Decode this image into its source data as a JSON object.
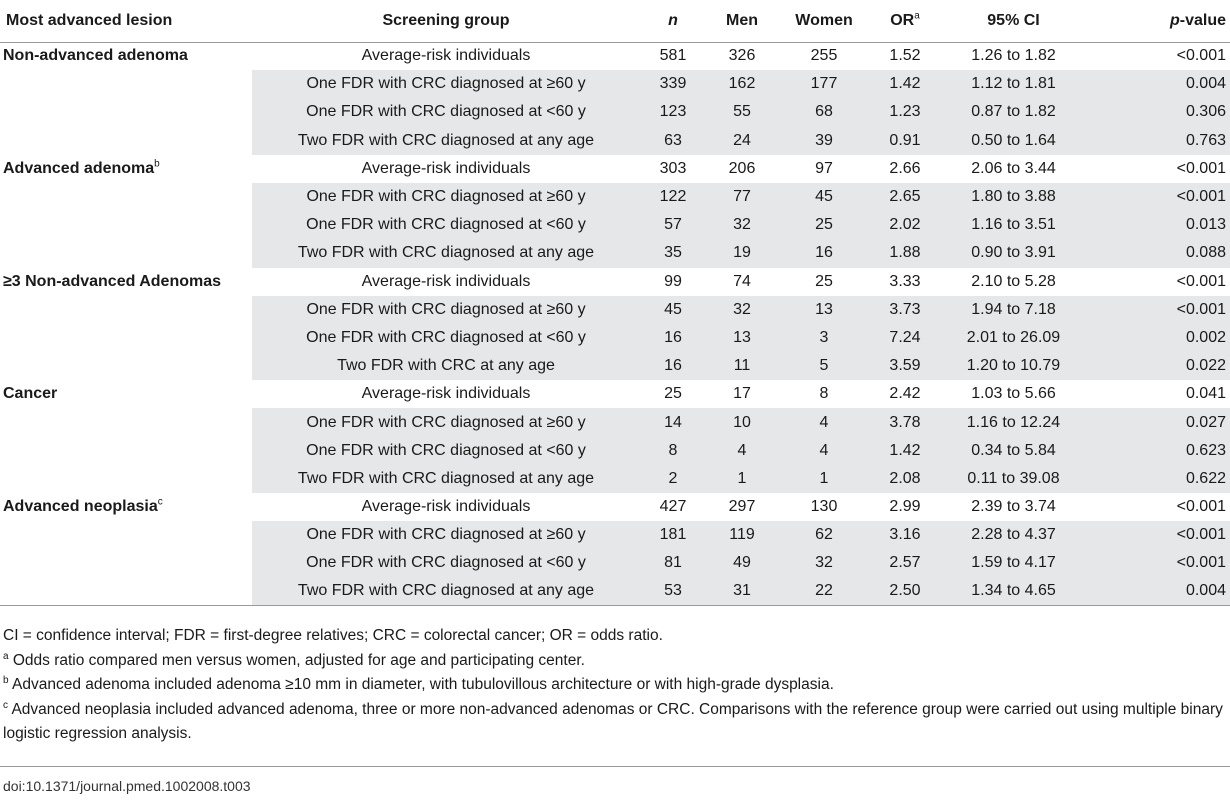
{
  "table": {
    "headers": {
      "lesion": "Most advanced lesion",
      "group": "Screening group",
      "n": "n",
      "men": "Men",
      "women": "Women",
      "or": "OR",
      "or_sup": "a",
      "ci": "95% CI",
      "p_italic": "p",
      "p_rest": "-value"
    },
    "rows": [
      {
        "lesion": "Non-advanced adenoma",
        "lesion_sup": "",
        "group": "Average-risk individuals",
        "n": "581",
        "men": "326",
        "women": "255",
        "or": "1.52",
        "ci": "1.26 to 1.82",
        "p": "<0.001"
      },
      {
        "lesion": "",
        "lesion_sup": "",
        "group": "One FDR with CRC diagnosed at ≥60 y",
        "n": "339",
        "men": "162",
        "women": "177",
        "or": "1.42",
        "ci": "1.12 to 1.81",
        "p": "0.004"
      },
      {
        "lesion": "",
        "lesion_sup": "",
        "group": "One FDR with CRC diagnosed at <60 y",
        "n": "123",
        "men": "55",
        "women": "68",
        "or": "1.23",
        "ci": "0.87 to 1.82",
        "p": "0.306"
      },
      {
        "lesion": "",
        "lesion_sup": "",
        "group": "Two FDR with CRC diagnosed at any age",
        "n": "63",
        "men": "24",
        "women": "39",
        "or": "0.91",
        "ci": "0.50 to 1.64",
        "p": "0.763"
      },
      {
        "lesion": "Advanced adenoma",
        "lesion_sup": "b",
        "group": "Average-risk individuals",
        "n": "303",
        "men": "206",
        "women": "97",
        "or": "2.66",
        "ci": "2.06 to 3.44",
        "p": "<0.001"
      },
      {
        "lesion": "",
        "lesion_sup": "",
        "group": "One FDR with CRC diagnosed at ≥60 y",
        "n": "122",
        "men": "77",
        "women": "45",
        "or": "2.65",
        "ci": "1.80 to 3.88",
        "p": "<0.001"
      },
      {
        "lesion": "",
        "lesion_sup": "",
        "group": "One FDR with CRC diagnosed at <60 y",
        "n": "57",
        "men": "32",
        "women": "25",
        "or": "2.02",
        "ci": "1.16 to 3.51",
        "p": "0.013"
      },
      {
        "lesion": "",
        "lesion_sup": "",
        "group": "Two FDR with CRC diagnosed at any age",
        "n": "35",
        "men": "19",
        "women": "16",
        "or": "1.88",
        "ci": "0.90 to 3.91",
        "p": "0.088"
      },
      {
        "lesion": "≥3 Non-advanced Adenomas",
        "lesion_sup": "",
        "group": "Average-risk individuals",
        "n": "99",
        "men": "74",
        "women": "25",
        "or": "3.33",
        "ci": "2.10 to 5.28",
        "p": "<0.001"
      },
      {
        "lesion": "",
        "lesion_sup": "",
        "group": "One FDR with CRC diagnosed at ≥60 y",
        "n": "45",
        "men": "32",
        "women": "13",
        "or": "3.73",
        "ci": "1.94 to 7.18",
        "p": "<0.001"
      },
      {
        "lesion": "",
        "lesion_sup": "",
        "group": "One FDR with CRC diagnosed at <60 y",
        "n": "16",
        "men": "13",
        "women": "3",
        "or": "7.24",
        "ci": "2.01 to 26.09",
        "p": "0.002"
      },
      {
        "lesion": "",
        "lesion_sup": "",
        "group": "Two FDR with CRC at any age",
        "n": "16",
        "men": "11",
        "women": "5",
        "or": "3.59",
        "ci": "1.20 to 10.79",
        "p": "0.022"
      },
      {
        "lesion": "Cancer",
        "lesion_sup": "",
        "group": "Average-risk individuals",
        "n": "25",
        "men": "17",
        "women": "8",
        "or": "2.42",
        "ci": "1.03 to 5.66",
        "p": "0.041"
      },
      {
        "lesion": "",
        "lesion_sup": "",
        "group": "One FDR with CRC diagnosed at ≥60 y",
        "n": "14",
        "men": "10",
        "women": "4",
        "or": "3.78",
        "ci": "1.16 to 12.24",
        "p": "0.027"
      },
      {
        "lesion": "",
        "lesion_sup": "",
        "group": "One FDR with CRC diagnosed at <60 y",
        "n": "8",
        "men": "4",
        "women": "4",
        "or": "1.42",
        "ci": "0.34 to 5.84",
        "p": "0.623"
      },
      {
        "lesion": "",
        "lesion_sup": "",
        "group": "Two FDR with CRC diagnosed at any age",
        "n": "2",
        "men": "1",
        "women": "1",
        "or": "2.08",
        "ci": "0.11 to 39.08",
        "p": "0.622"
      },
      {
        "lesion": "Advanced neoplasia",
        "lesion_sup": "c",
        "group": "Average-risk individuals",
        "n": "427",
        "men": "297",
        "women": "130",
        "or": "2.99",
        "ci": "2.39 to 3.74",
        "p": "<0.001"
      },
      {
        "lesion": "",
        "lesion_sup": "",
        "group": "One FDR with CRC diagnosed at ≥60 y",
        "n": "181",
        "men": "119",
        "women": "62",
        "or": "3.16",
        "ci": "2.28 to 4.37",
        "p": "<0.001"
      },
      {
        "lesion": "",
        "lesion_sup": "",
        "group": "One FDR with CRC diagnosed at <60 y",
        "n": "81",
        "men": "49",
        "women": "32",
        "or": "2.57",
        "ci": "1.59 to 4.17",
        "p": "<0.001"
      },
      {
        "lesion": "",
        "lesion_sup": "",
        "group": "Two FDR with CRC diagnosed at any age",
        "n": "53",
        "men": "31",
        "women": "22",
        "or": "2.50",
        "ci": "1.34 to 4.65",
        "p": "0.004"
      }
    ]
  },
  "footnotes": {
    "abbreviations": "CI = confidence interval; FDR = first-degree relatives; CRC = colorectal cancer; OR = odds ratio.",
    "a_mark": "a",
    "a_text": " Odds ratio compared men versus women, adjusted for age and participating center.",
    "b_mark": "b",
    "b_text": " Advanced adenoma included adenoma ≥10 mm in diameter, with tubulovillous architecture or with high-grade dysplasia.",
    "c_mark": "c",
    "c_text": " Advanced neoplasia included advanced adenoma, three or more non-advanced adenomas or CRC. Comparisons with the reference group were carried out using multiple binary logistic regression analysis."
  },
  "doi": "doi:10.1371/journal.pmed.1002008.t003",
  "colors": {
    "shaded_row": "#e6e7e8",
    "rule": "#9a9a9a",
    "text": "#1a1a1a"
  }
}
